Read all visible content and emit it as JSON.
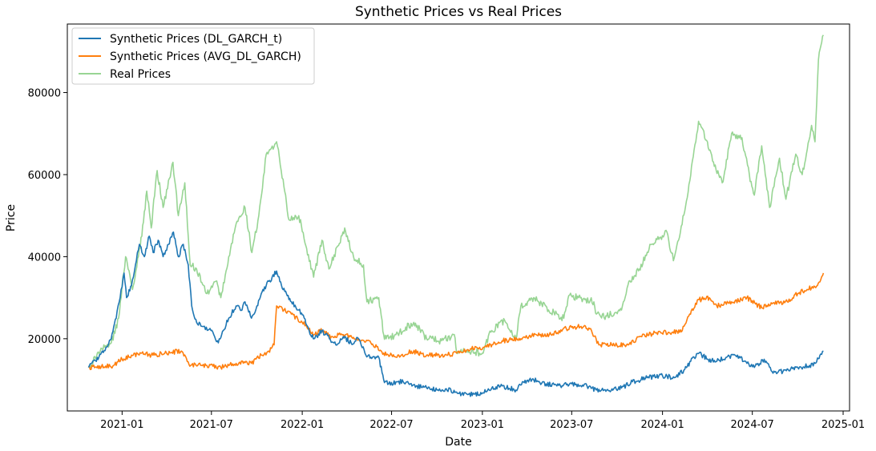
{
  "chart_data": {
    "type": "line",
    "title": "Synthetic Prices vs Real Prices",
    "xlabel": "Date",
    "ylabel": "Price",
    "x_range": [
      "2020-09-12",
      "2025-01-14"
    ],
    "ylim": [
      2400,
      96700
    ],
    "x_ticks": [
      {
        "date": "2021-01-01",
        "label": "2021-01"
      },
      {
        "date": "2021-07-01",
        "label": "2021-07"
      },
      {
        "date": "2022-01-01",
        "label": "2022-01"
      },
      {
        "date": "2022-07-01",
        "label": "2022-07"
      },
      {
        "date": "2023-01-01",
        "label": "2023-01"
      },
      {
        "date": "2023-07-01",
        "label": "2023-07"
      },
      {
        "date": "2024-01-01",
        "label": "2024-01"
      },
      {
        "date": "2024-07-01",
        "label": "2024-07"
      },
      {
        "date": "2025-01-01",
        "label": "2025-01"
      }
    ],
    "y_ticks": [
      20000,
      40000,
      60000,
      80000
    ],
    "y_tick_labels": [
      "20000",
      "40000",
      "60000",
      "80000"
    ],
    "grid": false,
    "legend_position": "top-left",
    "series": [
      {
        "name": "Synthetic Prices (DL_GARCH_t)",
        "color": "#1f77b4",
        "points": [
          [
            "2020-10-25",
            13000
          ],
          [
            "2020-11-15",
            15500
          ],
          [
            "2020-12-01",
            18000
          ],
          [
            "2020-12-10",
            20000
          ],
          [
            "2020-12-20",
            25000
          ],
          [
            "2020-12-28",
            30000
          ],
          [
            "2021-01-05",
            36000
          ],
          [
            "2021-01-10",
            30000
          ],
          [
            "2021-01-20",
            33000
          ],
          [
            "2021-01-28",
            38000
          ],
          [
            "2021-02-05",
            43000
          ],
          [
            "2021-02-15",
            40000
          ],
          [
            "2021-02-25",
            45000
          ],
          [
            "2021-03-05",
            41000
          ],
          [
            "2021-03-15",
            44000
          ],
          [
            "2021-03-25",
            40000
          ],
          [
            "2021-04-05",
            43000
          ],
          [
            "2021-04-15",
            46000
          ],
          [
            "2021-04-25",
            40000
          ],
          [
            "2021-05-05",
            43000
          ],
          [
            "2021-05-15",
            38000
          ],
          [
            "2021-05-22",
            28000
          ],
          [
            "2021-06-01",
            24000
          ],
          [
            "2021-06-15",
            23000
          ],
          [
            "2021-06-30",
            22000
          ],
          [
            "2021-07-15",
            19000
          ],
          [
            "2021-07-25",
            22000
          ],
          [
            "2021-08-05",
            25000
          ],
          [
            "2021-08-20",
            28000
          ],
          [
            "2021-09-01",
            27000
          ],
          [
            "2021-09-07",
            29000
          ],
          [
            "2021-09-20",
            25000
          ],
          [
            "2021-10-01",
            28000
          ],
          [
            "2021-10-10",
            31000
          ],
          [
            "2021-10-20",
            33000
          ],
          [
            "2021-11-01",
            35000
          ],
          [
            "2021-11-10",
            36500
          ],
          [
            "2021-11-20",
            33000
          ],
          [
            "2021-11-30",
            31000
          ],
          [
            "2021-12-10",
            29000
          ],
          [
            "2021-12-25",
            27000
          ],
          [
            "2022-01-05",
            25000
          ],
          [
            "2022-01-15",
            22000
          ],
          [
            "2022-01-25",
            20000
          ],
          [
            "2022-02-10",
            22000
          ],
          [
            "2022-02-25",
            20000
          ],
          [
            "2022-03-10",
            18500
          ],
          [
            "2022-03-25",
            20500
          ],
          [
            "2022-04-10",
            19000
          ],
          [
            "2022-04-25",
            20000
          ],
          [
            "2022-05-10",
            16000
          ],
          [
            "2022-05-20",
            15500
          ],
          [
            "2022-06-05",
            15500
          ],
          [
            "2022-06-15",
            10000
          ],
          [
            "2022-06-25",
            9000
          ],
          [
            "2022-07-10",
            9500
          ],
          [
            "2022-08-01",
            9500
          ],
          [
            "2022-08-20",
            8500
          ],
          [
            "2022-09-10",
            8000
          ],
          [
            "2022-10-01",
            7500
          ],
          [
            "2022-10-20",
            7800
          ],
          [
            "2022-11-08",
            7000
          ],
          [
            "2022-11-20",
            6500
          ],
          [
            "2022-12-15",
            6500
          ],
          [
            "2023-01-01",
            6800
          ],
          [
            "2023-01-20",
            8000
          ],
          [
            "2023-02-10",
            8500
          ],
          [
            "2023-03-10",
            7500
          ],
          [
            "2023-03-25",
            9500
          ],
          [
            "2023-04-15",
            10000
          ],
          [
            "2023-05-10",
            9000
          ],
          [
            "2023-06-01",
            8500
          ],
          [
            "2023-07-01",
            9000
          ],
          [
            "2023-08-01",
            8500
          ],
          [
            "2023-08-20",
            7500
          ],
          [
            "2023-09-10",
            7500
          ],
          [
            "2023-10-10",
            8000
          ],
          [
            "2023-11-01",
            9500
          ],
          [
            "2023-12-01",
            10500
          ],
          [
            "2024-01-01",
            11000
          ],
          [
            "2024-01-25",
            10500
          ],
          [
            "2024-02-15",
            12500
          ],
          [
            "2024-03-05",
            15500
          ],
          [
            "2024-03-15",
            16500
          ],
          [
            "2024-04-01",
            15000
          ],
          [
            "2024-04-20",
            14500
          ],
          [
            "2024-05-10",
            15500
          ],
          [
            "2024-06-01",
            16000
          ],
          [
            "2024-06-20",
            14000
          ],
          [
            "2024-07-05",
            13000
          ],
          [
            "2024-07-25",
            15000
          ],
          [
            "2024-08-10",
            12000
          ],
          [
            "2024-09-01",
            12000
          ],
          [
            "2024-10-01",
            13000
          ],
          [
            "2024-10-25",
            13500
          ],
          [
            "2024-11-05",
            14000
          ],
          [
            "2024-11-15",
            16000
          ],
          [
            "2024-11-22",
            17000
          ]
        ]
      },
      {
        "name": "Synthetic Prices (AVG_DL_GARCH)",
        "color": "#ff7f0e",
        "points": [
          [
            "2020-10-25",
            13000
          ],
          [
            "2020-11-20",
            13200
          ],
          [
            "2020-12-15",
            13500
          ],
          [
            "2021-01-01",
            15000
          ],
          [
            "2021-01-20",
            16000
          ],
          [
            "2021-02-10",
            16500
          ],
          [
            "2021-03-01",
            16000
          ],
          [
            "2021-04-01",
            16500
          ],
          [
            "2021-05-01",
            17000
          ],
          [
            "2021-05-20",
            13500
          ],
          [
            "2021-06-20",
            13500
          ],
          [
            "2021-07-20",
            13000
          ],
          [
            "2021-08-20",
            14000
          ],
          [
            "2021-09-20",
            14000
          ],
          [
            "2021-10-10",
            16000
          ],
          [
            "2021-10-25",
            17000
          ],
          [
            "2021-11-05",
            18500
          ],
          [
            "2021-11-10",
            28000
          ],
          [
            "2021-11-25",
            27000
          ],
          [
            "2021-12-10",
            26000
          ],
          [
            "2022-01-01",
            24000
          ],
          [
            "2022-01-25",
            21000
          ],
          [
            "2022-02-10",
            22000
          ],
          [
            "2022-03-01",
            20500
          ],
          [
            "2022-03-25",
            21000
          ],
          [
            "2022-04-20",
            20000
          ],
          [
            "2022-05-20",
            19000
          ],
          [
            "2022-06-15",
            16500
          ],
          [
            "2022-07-10",
            15500
          ],
          [
            "2022-08-10",
            17000
          ],
          [
            "2022-09-10",
            16000
          ],
          [
            "2022-10-10",
            16000
          ],
          [
            "2022-11-10",
            16500
          ],
          [
            "2022-12-10",
            17500
          ],
          [
            "2023-01-10",
            18000
          ],
          [
            "2023-02-10",
            19500
          ],
          [
            "2023-03-20",
            20000
          ],
          [
            "2023-04-20",
            21000
          ],
          [
            "2023-05-20",
            21000
          ],
          [
            "2023-06-20",
            22500
          ],
          [
            "2023-07-20",
            23000
          ],
          [
            "2023-08-10",
            22000
          ],
          [
            "2023-08-25",
            18500
          ],
          [
            "2023-09-20",
            18500
          ],
          [
            "2023-10-20",
            18500
          ],
          [
            "2023-11-20",
            20500
          ],
          [
            "2023-12-20",
            21500
          ],
          [
            "2024-01-20",
            21500
          ],
          [
            "2024-02-10",
            22000
          ],
          [
            "2024-02-25",
            26000
          ],
          [
            "2024-03-15",
            29500
          ],
          [
            "2024-04-05",
            30000
          ],
          [
            "2024-04-20",
            28000
          ],
          [
            "2024-05-20",
            29000
          ],
          [
            "2024-06-20",
            30000
          ],
          [
            "2024-07-20",
            27500
          ],
          [
            "2024-08-10",
            28500
          ],
          [
            "2024-09-10",
            29000
          ],
          [
            "2024-10-01",
            31000
          ],
          [
            "2024-10-20",
            32000
          ],
          [
            "2024-11-10",
            33000
          ],
          [
            "2024-11-22",
            36000
          ]
        ]
      },
      {
        "name": "Real Prices",
        "color": "#98d594",
        "points": [
          [
            "2020-10-25",
            13000
          ],
          [
            "2020-11-10",
            15500
          ],
          [
            "2020-11-25",
            18500
          ],
          [
            "2020-12-10",
            19000
          ],
          [
            "2020-12-25",
            25000
          ],
          [
            "2021-01-08",
            40000
          ],
          [
            "2021-01-22",
            32000
          ],
          [
            "2021-02-10",
            45000
          ],
          [
            "2021-02-20",
            56000
          ],
          [
            "2021-03-01",
            47000
          ],
          [
            "2021-03-13",
            61000
          ],
          [
            "2021-03-25",
            52000
          ],
          [
            "2021-04-14",
            63000
          ],
          [
            "2021-04-25",
            50000
          ],
          [
            "2021-05-08",
            58000
          ],
          [
            "2021-05-19",
            38000
          ],
          [
            "2021-06-01",
            37000
          ],
          [
            "2021-06-22",
            31000
          ],
          [
            "2021-07-10",
            34000
          ],
          [
            "2021-07-20",
            30000
          ],
          [
            "2021-08-05",
            40000
          ],
          [
            "2021-08-20",
            48000
          ],
          [
            "2021-09-07",
            52000
          ],
          [
            "2021-09-21",
            41000
          ],
          [
            "2021-10-05",
            50000
          ],
          [
            "2021-10-20",
            65000
          ],
          [
            "2021-11-10",
            68000
          ],
          [
            "2021-11-25",
            57000
          ],
          [
            "2021-12-05",
            49000
          ],
          [
            "2021-12-25",
            50000
          ],
          [
            "2022-01-10",
            42000
          ],
          [
            "2022-01-24",
            35000
          ],
          [
            "2022-02-10",
            44000
          ],
          [
            "2022-02-24",
            37000
          ],
          [
            "2022-03-28",
            47000
          ],
          [
            "2022-04-15",
            40000
          ],
          [
            "2022-05-05",
            38000
          ],
          [
            "2022-05-12",
            29000
          ],
          [
            "2022-06-05",
            30000
          ],
          [
            "2022-06-15",
            21000
          ],
          [
            "2022-06-20",
            20000
          ],
          [
            "2022-07-10",
            21000
          ],
          [
            "2022-08-15",
            24000
          ],
          [
            "2022-09-10",
            20000
          ],
          [
            "2022-10-10",
            19500
          ],
          [
            "2022-11-05",
            21000
          ],
          [
            "2022-11-10",
            16500
          ],
          [
            "2022-12-10",
            17000
          ],
          [
            "2023-01-01",
            16500
          ],
          [
            "2023-01-20",
            22000
          ],
          [
            "2023-02-15",
            24500
          ],
          [
            "2023-03-10",
            20000
          ],
          [
            "2023-03-20",
            28000
          ],
          [
            "2023-04-15",
            30000
          ],
          [
            "2023-05-15",
            27000
          ],
          [
            "2023-06-15",
            25000
          ],
          [
            "2023-06-25",
            30500
          ],
          [
            "2023-07-15",
            30000
          ],
          [
            "2023-08-15",
            29000
          ],
          [
            "2023-08-20",
            26000
          ],
          [
            "2023-09-10",
            25500
          ],
          [
            "2023-10-10",
            27000
          ],
          [
            "2023-10-25",
            34000
          ],
          [
            "2023-11-15",
            37000
          ],
          [
            "2023-12-10",
            43000
          ],
          [
            "2024-01-10",
            46000
          ],
          [
            "2024-01-23",
            39000
          ],
          [
            "2024-02-15",
            51000
          ],
          [
            "2024-03-05",
            66000
          ],
          [
            "2024-03-14",
            73000
          ],
          [
            "2024-04-01",
            68000
          ],
          [
            "2024-04-15",
            62000
          ],
          [
            "2024-05-01",
            58000
          ],
          [
            "2024-05-20",
            70000
          ],
          [
            "2024-06-10",
            69000
          ],
          [
            "2024-06-25",
            60000
          ],
          [
            "2024-07-05",
            55000
          ],
          [
            "2024-07-20",
            67000
          ],
          [
            "2024-08-05",
            52000
          ],
          [
            "2024-08-25",
            64000
          ],
          [
            "2024-09-07",
            54000
          ],
          [
            "2024-09-27",
            65000
          ],
          [
            "2024-10-10",
            60000
          ],
          [
            "2024-10-29",
            72000
          ],
          [
            "2024-11-05",
            68000
          ],
          [
            "2024-11-12",
            88000
          ],
          [
            "2024-11-22",
            94000
          ]
        ]
      }
    ]
  }
}
